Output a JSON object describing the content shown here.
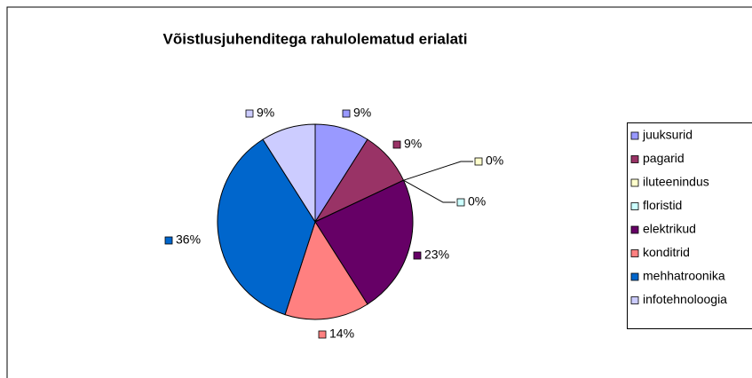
{
  "chart_data": {
    "type": "pie",
    "title": "Võistlusjuhenditega rahulolematud erialati",
    "categories": [
      "juuksurid",
      "pagarid",
      "iluteenindus",
      "floristid",
      "elektrikud",
      "konditrid",
      "mehhatroonika",
      "infotehnoloogia"
    ],
    "values": [
      9,
      9,
      0,
      0,
      23,
      14,
      36,
      9
    ],
    "value_labels": [
      "9%",
      "9%",
      "0%",
      "0%",
      "23%",
      "14%",
      "36%",
      "9%"
    ],
    "colors": [
      "#9999FF",
      "#993366",
      "#FFFFCC",
      "#CCFFFF",
      "#660066",
      "#FF8080",
      "#0066CC",
      "#CCCCFF"
    ],
    "legend": "right"
  }
}
